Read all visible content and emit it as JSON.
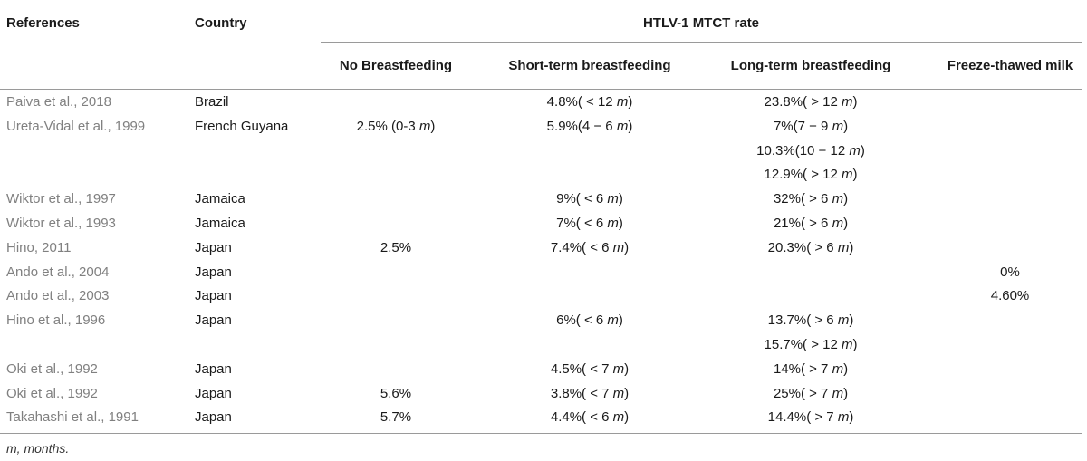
{
  "table": {
    "headers": {
      "references": "References",
      "country": "Country",
      "group": "HTLV-1 MTCT rate",
      "no_bf": "No Breastfeeding",
      "short_bf": "Short-term breastfeeding",
      "long_bf": "Long-term breastfeeding",
      "freeze": "Freeze-thawed milk"
    },
    "rows": [
      {
        "ref": "Paiva et al., 2018",
        "country": "Brazil",
        "no_bf": "",
        "short_bf": "4.8%( < 12 m)",
        "long_bf": "23.8%( > 12 m)",
        "freeze": ""
      },
      {
        "ref": "Ureta-Vidal et al., 1999",
        "country": "French Guyana",
        "no_bf": "2.5% (0-3 m)",
        "short_bf": "5.9%(4 − 6 m)",
        "long_bf": "7%(7 − 9 m)",
        "freeze": ""
      },
      {
        "ref": "",
        "country": "",
        "no_bf": "",
        "short_bf": "",
        "long_bf": "10.3%(10 − 12 m)",
        "freeze": ""
      },
      {
        "ref": "",
        "country": "",
        "no_bf": "",
        "short_bf": "",
        "long_bf": "12.9%( > 12 m)",
        "freeze": ""
      },
      {
        "ref": "Wiktor et al., 1997",
        "country": "Jamaica",
        "no_bf": "",
        "short_bf": "9%( < 6 m)",
        "long_bf": "32%( > 6 m)",
        "freeze": ""
      },
      {
        "ref": "Wiktor et al., 1993",
        "country": "Jamaica",
        "no_bf": "",
        "short_bf": "7%( < 6 m)",
        "long_bf": "21%( > 6 m)",
        "freeze": ""
      },
      {
        "ref": "Hino, 2011",
        "country": "Japan",
        "no_bf": "2.5%",
        "short_bf": "7.4%( < 6 m)",
        "long_bf": "20.3%( > 6 m)",
        "freeze": ""
      },
      {
        "ref": "Ando et al., 2004",
        "country": "Japan",
        "no_bf": "",
        "short_bf": "",
        "long_bf": "",
        "freeze": "0%"
      },
      {
        "ref": "Ando et al., 2003",
        "country": "Japan",
        "no_bf": "",
        "short_bf": "",
        "long_bf": "",
        "freeze": "4.60%"
      },
      {
        "ref": "Hino et al., 1996",
        "country": "Japan",
        "no_bf": "",
        "short_bf": "6%( < 6 m)",
        "long_bf": "13.7%( > 6 m)",
        "freeze": ""
      },
      {
        "ref": "",
        "country": "",
        "no_bf": "",
        "short_bf": "",
        "long_bf": "15.7%( > 12 m)",
        "freeze": ""
      },
      {
        "ref": "Oki et al., 1992",
        "country": "Japan",
        "no_bf": "",
        "short_bf": "4.5%( < 7 m)",
        "long_bf": "14%(  >  7 m)",
        "freeze": ""
      },
      {
        "ref": "Oki et al., 1992",
        "country": "Japan",
        "no_bf": "5.6%",
        "short_bf": "3.8%( < 7 m)",
        "long_bf": "25%( > 7 m)",
        "freeze": ""
      },
      {
        "ref": "Takahashi et al., 1991",
        "country": "Japan",
        "no_bf": "5.7%",
        "short_bf": "4.4%( < 6 m)",
        "long_bf": "14.4%( > 7 m)",
        "freeze": ""
      }
    ],
    "footnote": "m, months."
  }
}
